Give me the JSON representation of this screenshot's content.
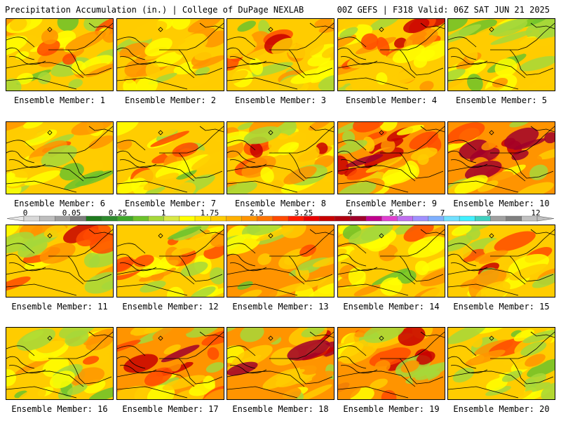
{
  "header": {
    "title": "Precipitation Accumulation (in.) | College of DuPage NEXLAB",
    "valid": "00Z GEFS | F318 Valid: 06Z SAT JUN 21 2025"
  },
  "legend": {
    "labels": [
      "0",
      "0.05",
      "0.25",
      "1",
      "1.75",
      "2.5",
      "3.25",
      "4",
      "5.5",
      "7",
      "9",
      "12"
    ],
    "colors": [
      "#d9d9d9",
      "#bdbdbd",
      "#9e9e9e",
      "#7d7d7d",
      "#1e7a1e",
      "#2e8b2e",
      "#3fa82a",
      "#6cc22c",
      "#a6d83a",
      "#d8e845",
      "#ffff00",
      "#ffe600",
      "#ffcc00",
      "#ffb000",
      "#ff9400",
      "#ff7400",
      "#ff4a00",
      "#ff1a00",
      "#e80000",
      "#c80000",
      "#b00010",
      "#a0002a",
      "#c0008c",
      "#e040d0",
      "#c070f0",
      "#a090ff",
      "#7fb0ff",
      "#70e0ff",
      "#40f0ff",
      "#40d0c0",
      "#a0a0a0",
      "#808080",
      "#c0c0c0"
    ]
  },
  "members": [
    {
      "label": "Ensemble Member: 1",
      "wetness": 0.45
    },
    {
      "label": "Ensemble Member: 2",
      "wetness": 0.55
    },
    {
      "label": "Ensemble Member: 3",
      "wetness": 0.6
    },
    {
      "label": "Ensemble Member: 4",
      "wetness": 0.55
    },
    {
      "label": "Ensemble Member: 5",
      "wetness": 0.35
    },
    {
      "label": "Ensemble Member: 6",
      "wetness": 0.4
    },
    {
      "label": "Ensemble Member: 7",
      "wetness": 0.45
    },
    {
      "label": "Ensemble Member: 8",
      "wetness": 0.55
    },
    {
      "label": "Ensemble Member: 9",
      "wetness": 0.75
    },
    {
      "label": "Ensemble Member: 10",
      "wetness": 0.85
    },
    {
      "label": "Ensemble Member: 11",
      "wetness": 0.6
    },
    {
      "label": "Ensemble Member: 12",
      "wetness": 0.55
    },
    {
      "label": "Ensemble Member: 13",
      "wetness": 0.65
    },
    {
      "label": "Ensemble Member: 14",
      "wetness": 0.5
    },
    {
      "label": "Ensemble Member: 15",
      "wetness": 0.6
    },
    {
      "label": "Ensemble Member: 16",
      "wetness": 0.4
    },
    {
      "label": "Ensemble Member: 17",
      "wetness": 0.8
    },
    {
      "label": "Ensemble Member: 18",
      "wetness": 0.7
    },
    {
      "label": "Ensemble Member: 19",
      "wetness": 0.8
    },
    {
      "label": "Ensemble Member: 20",
      "wetness": 0.4
    }
  ]
}
